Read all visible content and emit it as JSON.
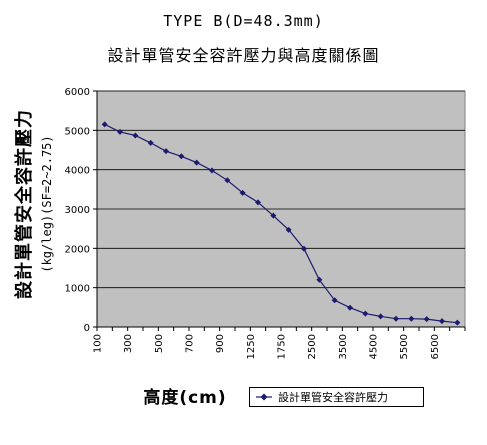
{
  "chart_data": {
    "type": "line",
    "title": "TYPE B(D=48.3mm)",
    "subtitle": "設計單管安全容許壓力與高度關係圖",
    "ylabel": "設計單管安全容許壓力",
    "ylabel_unit": "(kg/leg)(SF=2~2.75)",
    "xlabel": "高度(cm)",
    "ylim": [
      0,
      6000
    ],
    "yticks": [
      "0",
      "1000",
      "2000",
      "3000",
      "4000",
      "5000",
      "6000"
    ],
    "xticks": [
      "100",
      "300",
      "500",
      "700",
      "900",
      "1250",
      "1750",
      "2500",
      "3500",
      "4500",
      "5500",
      "6500"
    ],
    "grid": "horizontal",
    "plot_background": "#c0c0c0",
    "line_color": "#1c1c6e",
    "legend_position": "bottom-right",
    "series": [
      {
        "name": "設計單管安全容許壓力",
        "values": [
          5150,
          4960,
          4870,
          4680,
          4470,
          4340,
          4180,
          3980,
          3730,
          3410,
          3170,
          2830,
          2470,
          1990,
          1200,
          680,
          490,
          340,
          270,
          210,
          210,
          200,
          150,
          110
        ]
      }
    ]
  }
}
